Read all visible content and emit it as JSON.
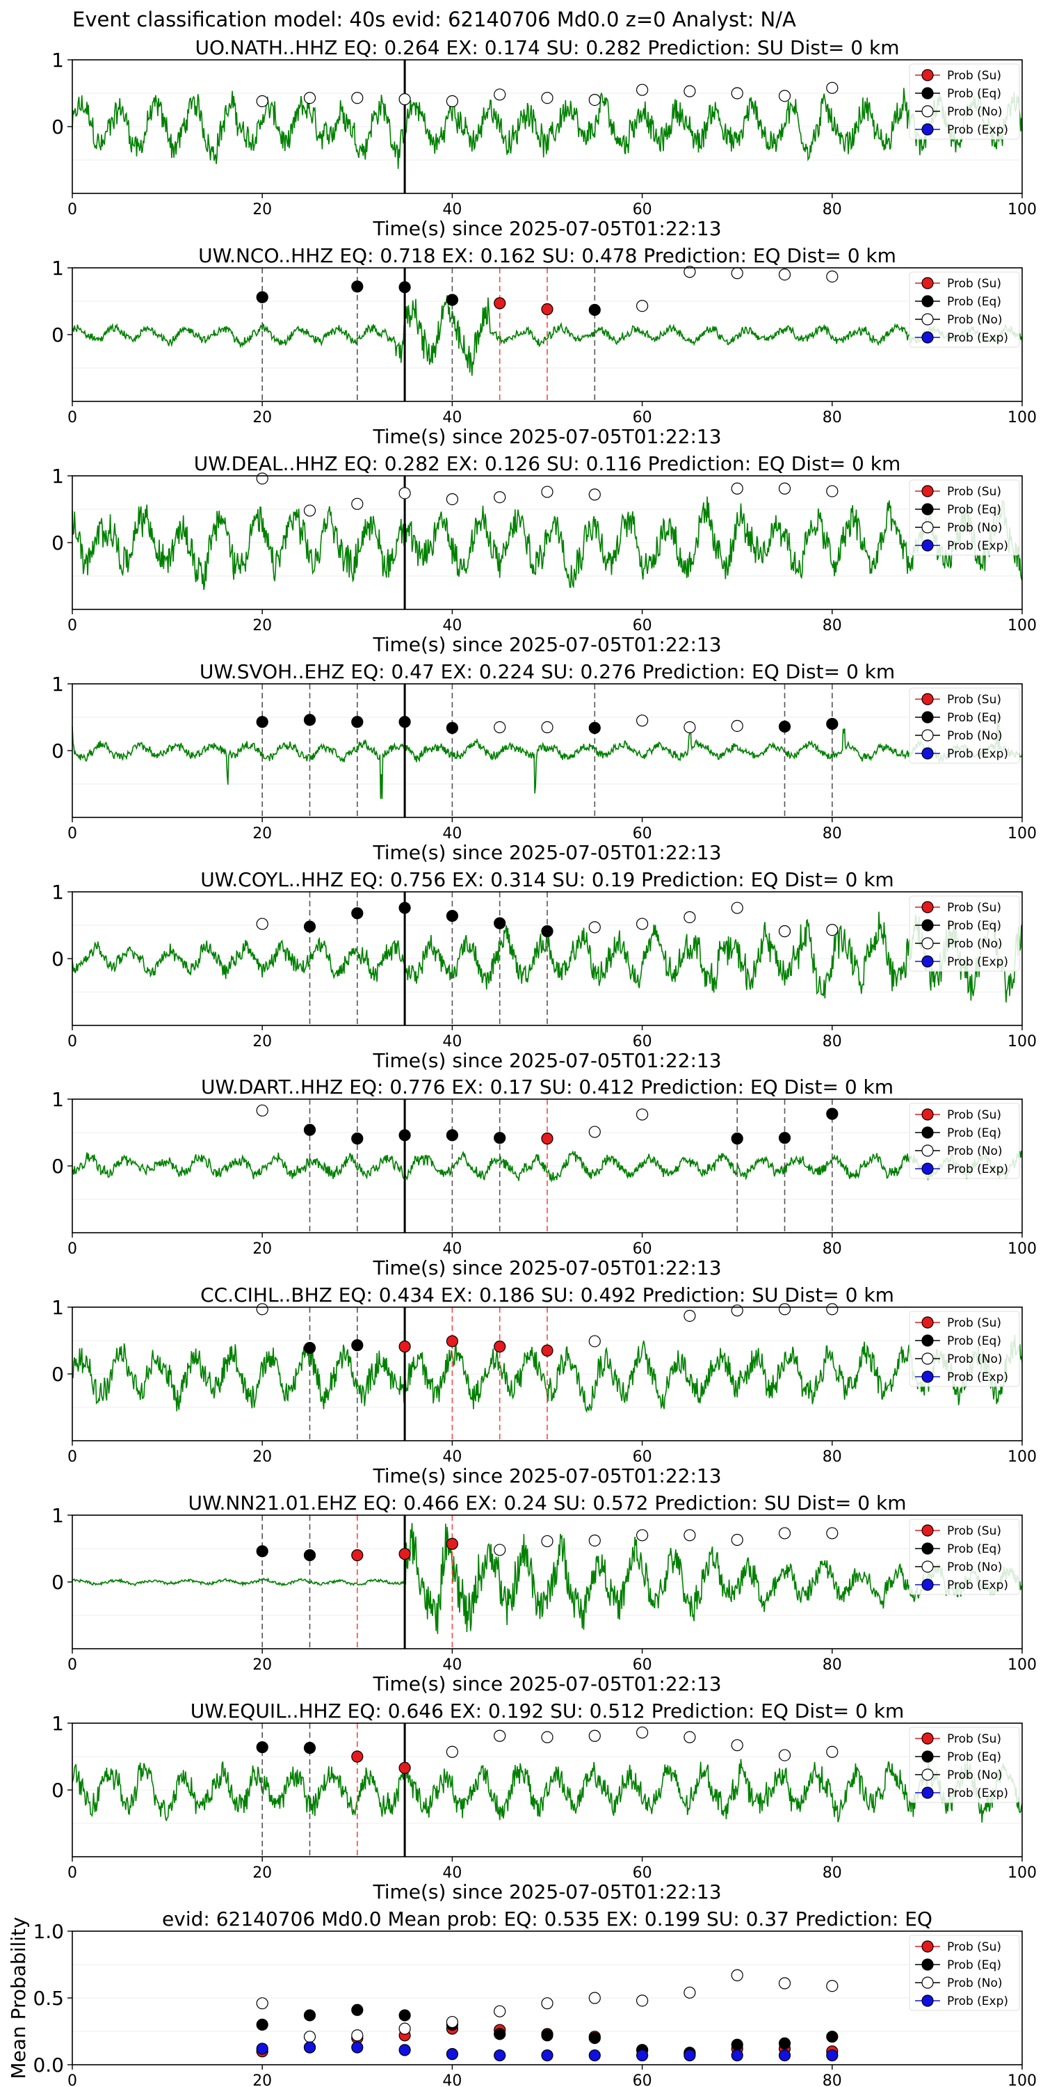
{
  "suptitle": "Event classification model: 40s evid: 62140706 Md0.0 z=0 Analyst: N/A",
  "legend": [
    {
      "label": "Prob (Su)",
      "color": "#e41a1c",
      "filled": true
    },
    {
      "label": "Prob (Eq)",
      "color": "#000000",
      "filled": true
    },
    {
      "label": "Prob (No)",
      "color": "#ffffff",
      "filled": false
    },
    {
      "label": "Prob (Exp)",
      "color": "#1010e0",
      "filled": true
    }
  ],
  "colors": {
    "waveform": "#008000",
    "pick_line": "#000000",
    "eq_marker_line": "#555555",
    "su_marker_line": "#ff4444"
  },
  "chart_data": [
    {
      "type": "scatter",
      "title": "UO.NATH..HHZ   EQ: 0.264  EX: 0.174  SU: 0.282   Prediction: SU    Dist= 0 km",
      "xlabel": "Time(s) since 2025-07-05T01:22:13",
      "ylabel": "",
      "xlim": [
        0,
        100
      ],
      "ylim": [
        -1,
        1
      ],
      "xticks": [
        "0",
        "20",
        "40",
        "60",
        "80",
        "100"
      ],
      "yticks": [
        "1",
        "0"
      ],
      "pick_time": 35,
      "wave": "noisy",
      "amp": 0.5,
      "points": [
        {
          "x": 20,
          "y": 0.38,
          "c": "No"
        },
        {
          "x": 25,
          "y": 0.43,
          "c": "No"
        },
        {
          "x": 30,
          "y": 0.43,
          "c": "No"
        },
        {
          "x": 35,
          "y": 0.41,
          "c": "No"
        },
        {
          "x": 40,
          "y": 0.38,
          "c": "No"
        },
        {
          "x": 45,
          "y": 0.48,
          "c": "No"
        },
        {
          "x": 50,
          "y": 0.43,
          "c": "No"
        },
        {
          "x": 55,
          "y": 0.4,
          "c": "No"
        },
        {
          "x": 60,
          "y": 0.55,
          "c": "No"
        },
        {
          "x": 65,
          "y": 0.53,
          "c": "No"
        },
        {
          "x": 70,
          "y": 0.5,
          "c": "No"
        },
        {
          "x": 75,
          "y": 0.46,
          "c": "No"
        },
        {
          "x": 80,
          "y": 0.58,
          "c": "No"
        }
      ]
    },
    {
      "type": "scatter",
      "title": "UW.NCO..HHZ   EQ: 0.718  EX: 0.162  SU: 0.478   Prediction: EQ    Dist= 0 km",
      "xlabel": "Time(s) since 2025-07-05T01:22:13",
      "ylabel": "",
      "xlim": [
        0,
        100
      ],
      "ylim": [
        -1,
        1
      ],
      "xticks": [
        "0",
        "20",
        "40",
        "60",
        "80",
        "100"
      ],
      "yticks": [
        "1",
        "0"
      ],
      "pick_time": 35,
      "wave": "burst",
      "amp": 0.15,
      "points": [
        {
          "x": 20,
          "y": 0.56,
          "c": "Eq"
        },
        {
          "x": 30,
          "y": 0.72,
          "c": "Eq"
        },
        {
          "x": 35,
          "y": 0.71,
          "c": "Eq"
        },
        {
          "x": 40,
          "y": 0.52,
          "c": "Eq"
        },
        {
          "x": 45,
          "y": 0.47,
          "c": "Su"
        },
        {
          "x": 50,
          "y": 0.38,
          "c": "Su"
        },
        {
          "x": 55,
          "y": 0.37,
          "c": "Eq"
        },
        {
          "x": 60,
          "y": 0.43,
          "c": "No"
        },
        {
          "x": 65,
          "y": 0.94,
          "c": "No"
        },
        {
          "x": 70,
          "y": 0.92,
          "c": "No"
        },
        {
          "x": 75,
          "y": 0.9,
          "c": "No"
        },
        {
          "x": 80,
          "y": 0.87,
          "c": "No"
        }
      ]
    },
    {
      "type": "scatter",
      "title": "UW.DEAL..HHZ   EQ: 0.282  EX: 0.126  SU: 0.116   Prediction: EQ    Dist= 0 km",
      "xlabel": "Time(s) since 2025-07-05T01:22:13",
      "ylabel": "",
      "xlim": [
        0,
        100
      ],
      "ylim": [
        -1,
        1
      ],
      "xticks": [
        "0",
        "20",
        "40",
        "60",
        "80",
        "100"
      ],
      "yticks": [
        "1",
        "0"
      ],
      "pick_time": 35,
      "wave": "noisy",
      "amp": 0.6,
      "points": [
        {
          "x": 20,
          "y": 0.96,
          "c": "No"
        },
        {
          "x": 25,
          "y": 0.48,
          "c": "No"
        },
        {
          "x": 30,
          "y": 0.58,
          "c": "No"
        },
        {
          "x": 35,
          "y": 0.74,
          "c": "No"
        },
        {
          "x": 40,
          "y": 0.65,
          "c": "No"
        },
        {
          "x": 45,
          "y": 0.68,
          "c": "No"
        },
        {
          "x": 50,
          "y": 0.76,
          "c": "No"
        },
        {
          "x": 55,
          "y": 0.72,
          "c": "No"
        },
        {
          "x": 70,
          "y": 0.81,
          "c": "No"
        },
        {
          "x": 75,
          "y": 0.81,
          "c": "No"
        },
        {
          "x": 80,
          "y": 0.77,
          "c": "No"
        }
      ]
    },
    {
      "type": "scatter",
      "title": "UW.SVOH..EHZ   EQ: 0.47  EX: 0.224  SU: 0.276   Prediction: EQ    Dist= 0 km",
      "xlabel": "Time(s) since 2025-07-05T01:22:13",
      "ylabel": "",
      "xlim": [
        0,
        100
      ],
      "ylim": [
        -1,
        1
      ],
      "xticks": [
        "0",
        "20",
        "40",
        "60",
        "80",
        "100"
      ],
      "yticks": [
        "1",
        "0"
      ],
      "pick_time": 35,
      "wave": "spiky",
      "amp": 0.15,
      "points": [
        {
          "x": 20,
          "y": 0.43,
          "c": "Eq"
        },
        {
          "x": 25,
          "y": 0.46,
          "c": "Eq"
        },
        {
          "x": 30,
          "y": 0.43,
          "c": "Eq"
        },
        {
          "x": 35,
          "y": 0.43,
          "c": "Eq"
        },
        {
          "x": 40,
          "y": 0.34,
          "c": "Eq"
        },
        {
          "x": 45,
          "y": 0.35,
          "c": "No"
        },
        {
          "x": 50,
          "y": 0.35,
          "c": "No"
        },
        {
          "x": 55,
          "y": 0.34,
          "c": "Eq"
        },
        {
          "x": 60,
          "y": 0.45,
          "c": "No"
        },
        {
          "x": 65,
          "y": 0.35,
          "c": "No"
        },
        {
          "x": 70,
          "y": 0.37,
          "c": "No"
        },
        {
          "x": 75,
          "y": 0.36,
          "c": "Eq"
        },
        {
          "x": 80,
          "y": 0.4,
          "c": "Eq"
        }
      ]
    },
    {
      "type": "scatter",
      "title": "UW.COYL..HHZ   EQ: 0.756  EX: 0.314  SU: 0.19   Prediction: EQ    Dist= 0 km",
      "xlabel": "Time(s) since 2025-07-05T01:22:13",
      "ylabel": "",
      "xlim": [
        0,
        100
      ],
      "ylim": [
        -1,
        1
      ],
      "xticks": [
        "0",
        "20",
        "40",
        "60",
        "80",
        "100"
      ],
      "yticks": [
        "1",
        "0"
      ],
      "pick_time": 35,
      "wave": "growing",
      "amp": 0.35,
      "points": [
        {
          "x": 20,
          "y": 0.52,
          "c": "No"
        },
        {
          "x": 25,
          "y": 0.48,
          "c": "Eq"
        },
        {
          "x": 30,
          "y": 0.68,
          "c": "Eq"
        },
        {
          "x": 35,
          "y": 0.76,
          "c": "Eq"
        },
        {
          "x": 40,
          "y": 0.64,
          "c": "Eq"
        },
        {
          "x": 45,
          "y": 0.53,
          "c": "Eq"
        },
        {
          "x": 50,
          "y": 0.41,
          "c": "Eq"
        },
        {
          "x": 55,
          "y": 0.47,
          "c": "No"
        },
        {
          "x": 60,
          "y": 0.52,
          "c": "No"
        },
        {
          "x": 65,
          "y": 0.62,
          "c": "No"
        },
        {
          "x": 70,
          "y": 0.76,
          "c": "No"
        },
        {
          "x": 75,
          "y": 0.41,
          "c": "No"
        },
        {
          "x": 80,
          "y": 0.43,
          "c": "No"
        }
      ]
    },
    {
      "type": "scatter",
      "title": "UW.DART..HHZ   EQ: 0.776  EX: 0.17  SU: 0.412   Prediction: EQ    Dist= 0 km",
      "xlabel": "Time(s) since 2025-07-05T01:22:13",
      "ylabel": "",
      "xlim": [
        0,
        100
      ],
      "ylim": [
        -1,
        1
      ],
      "xticks": [
        "0",
        "20",
        "40",
        "60",
        "80",
        "100"
      ],
      "yticks": [
        "1",
        "0"
      ],
      "pick_time": 35,
      "wave": "noisy",
      "amp": 0.2,
      "points": [
        {
          "x": 20,
          "y": 0.83,
          "c": "No"
        },
        {
          "x": 25,
          "y": 0.54,
          "c": "Eq"
        },
        {
          "x": 30,
          "y": 0.41,
          "c": "Eq"
        },
        {
          "x": 35,
          "y": 0.46,
          "c": "Eq"
        },
        {
          "x": 40,
          "y": 0.46,
          "c": "Eq"
        },
        {
          "x": 45,
          "y": 0.42,
          "c": "Eq"
        },
        {
          "x": 50,
          "y": 0.41,
          "c": "Su"
        },
        {
          "x": 55,
          "y": 0.51,
          "c": "No"
        },
        {
          "x": 60,
          "y": 0.77,
          "c": "No"
        },
        {
          "x": 70,
          "y": 0.41,
          "c": "Eq"
        },
        {
          "x": 75,
          "y": 0.42,
          "c": "Eq"
        },
        {
          "x": 80,
          "y": 0.78,
          "c": "Eq"
        }
      ]
    },
    {
      "type": "scatter",
      "title": "CC.CIHL..BHZ   EQ: 0.434  EX: 0.186  SU: 0.492   Prediction: SU    Dist= 0 km",
      "xlabel": "Time(s) since 2025-07-05T01:22:13",
      "ylabel": "",
      "xlim": [
        0,
        100
      ],
      "ylim": [
        -1,
        1
      ],
      "xticks": [
        "0",
        "20",
        "40",
        "60",
        "80",
        "100"
      ],
      "yticks": [
        "1",
        "0"
      ],
      "pick_time": 35,
      "wave": "noisy",
      "amp": 0.5,
      "points": [
        {
          "x": 20,
          "y": 0.97,
          "c": "No"
        },
        {
          "x": 25,
          "y": 0.39,
          "c": "Eq"
        },
        {
          "x": 30,
          "y": 0.43,
          "c": "Eq"
        },
        {
          "x": 35,
          "y": 0.41,
          "c": "Su"
        },
        {
          "x": 40,
          "y": 0.49,
          "c": "Su"
        },
        {
          "x": 45,
          "y": 0.41,
          "c": "Su"
        },
        {
          "x": 50,
          "y": 0.35,
          "c": "Su"
        },
        {
          "x": 55,
          "y": 0.49,
          "c": "No"
        },
        {
          "x": 65,
          "y": 0.87,
          "c": "No"
        },
        {
          "x": 70,
          "y": 0.95,
          "c": "No"
        },
        {
          "x": 75,
          "y": 0.97,
          "c": "No"
        },
        {
          "x": 80,
          "y": 0.97,
          "c": "No"
        }
      ]
    },
    {
      "type": "scatter",
      "title": "UW.NN21.01.EHZ   EQ: 0.466  EX: 0.24  SU: 0.572   Prediction: SU    Dist= 0 km",
      "xlabel": "Time(s) since 2025-07-05T01:22:13",
      "ylabel": "",
      "xlim": [
        0,
        100
      ],
      "ylim": [
        -1,
        1
      ],
      "xticks": [
        "0",
        "20",
        "40",
        "60",
        "80",
        "100"
      ],
      "yticks": [
        "1",
        "0"
      ],
      "pick_time": 35,
      "wave": "event",
      "amp": 0.6,
      "points": [
        {
          "x": 20,
          "y": 0.46,
          "c": "Eq"
        },
        {
          "x": 25,
          "y": 0.4,
          "c": "Eq"
        },
        {
          "x": 30,
          "y": 0.4,
          "c": "Su"
        },
        {
          "x": 35,
          "y": 0.42,
          "c": "Su"
        },
        {
          "x": 40,
          "y": 0.57,
          "c": "Su"
        },
        {
          "x": 45,
          "y": 0.48,
          "c": "No"
        },
        {
          "x": 50,
          "y": 0.61,
          "c": "No"
        },
        {
          "x": 55,
          "y": 0.62,
          "c": "No"
        },
        {
          "x": 60,
          "y": 0.7,
          "c": "No"
        },
        {
          "x": 65,
          "y": 0.7,
          "c": "No"
        },
        {
          "x": 70,
          "y": 0.63,
          "c": "No"
        },
        {
          "x": 75,
          "y": 0.73,
          "c": "No"
        },
        {
          "x": 80,
          "y": 0.73,
          "c": "No"
        }
      ]
    },
    {
      "type": "scatter",
      "title": "UW.EQUIL..HHZ   EQ: 0.646  EX: 0.192  SU: 0.512   Prediction: EQ    Dist= 0 km",
      "xlabel": "Time(s) since 2025-07-05T01:22:13",
      "ylabel": "",
      "xlim": [
        0,
        100
      ],
      "ylim": [
        -1,
        1
      ],
      "xticks": [
        "0",
        "20",
        "40",
        "60",
        "80",
        "100"
      ],
      "yticks": [
        "1",
        "0"
      ],
      "pick_time": 35,
      "wave": "noisy",
      "amp": 0.45,
      "points": [
        {
          "x": 20,
          "y": 0.64,
          "c": "Eq"
        },
        {
          "x": 25,
          "y": 0.63,
          "c": "Eq"
        },
        {
          "x": 30,
          "y": 0.5,
          "c": "Su"
        },
        {
          "x": 35,
          "y": 0.33,
          "c": "Su"
        },
        {
          "x": 40,
          "y": 0.57,
          "c": "No"
        },
        {
          "x": 45,
          "y": 0.81,
          "c": "No"
        },
        {
          "x": 50,
          "y": 0.79,
          "c": "No"
        },
        {
          "x": 55,
          "y": 0.81,
          "c": "No"
        },
        {
          "x": 60,
          "y": 0.86,
          "c": "No"
        },
        {
          "x": 65,
          "y": 0.79,
          "c": "No"
        },
        {
          "x": 70,
          "y": 0.67,
          "c": "No"
        },
        {
          "x": 75,
          "y": 0.52,
          "c": "No"
        },
        {
          "x": 80,
          "y": 0.57,
          "c": "No"
        }
      ]
    },
    {
      "type": "scatter",
      "title": "evid: 62140706  Md0.0   Mean prob:   EQ: 0.535  EX: 0.199  SU: 0.37   Prediction: EQ",
      "xlabel": "",
      "ylabel": "Mean Probability",
      "xlim": [
        0,
        100
      ],
      "ylim": [
        0,
        1
      ],
      "xticks": [
        "0",
        "20",
        "40",
        "60",
        "80",
        "100"
      ],
      "yticks": [
        "1.0",
        "0.5",
        "0.0"
      ],
      "pick_time": null,
      "wave": "none",
      "amp": 0,
      "series": [
        {
          "name": "Prob (Su)",
          "x": [
            20,
            25,
            30,
            35,
            40,
            45,
            50,
            55,
            60,
            65,
            70,
            75,
            80
          ],
          "y": [
            0.1,
            0.13,
            0.2,
            0.22,
            0.27,
            0.26,
            0.23,
            0.21,
            0.11,
            0.08,
            0.12,
            0.12,
            0.1
          ]
        },
        {
          "name": "Prob (Eq)",
          "x": [
            20,
            25,
            30,
            35,
            40,
            45,
            50,
            55,
            60,
            65,
            70,
            75,
            80
          ],
          "y": [
            0.3,
            0.37,
            0.41,
            0.37,
            0.3,
            0.23,
            0.22,
            0.2,
            0.11,
            0.09,
            0.15,
            0.16,
            0.21
          ]
        },
        {
          "name": "Prob (No)",
          "x": [
            20,
            25,
            30,
            35,
            40,
            45,
            50,
            55,
            60,
            65,
            70,
            75,
            80
          ],
          "y": [
            0.46,
            0.21,
            0.22,
            0.27,
            0.32,
            0.4,
            0.46,
            0.5,
            0.48,
            0.54,
            0.67,
            0.61,
            0.59
          ]
        },
        {
          "name": "Prob (Exp)",
          "x": [
            20,
            25,
            30,
            35,
            40,
            45,
            50,
            55,
            60,
            65,
            70,
            75,
            80
          ],
          "y": [
            0.12,
            0.13,
            0.13,
            0.11,
            0.08,
            0.07,
            0.07,
            0.07,
            0.07,
            0.07,
            0.07,
            0.07,
            0.07
          ]
        }
      ]
    }
  ]
}
